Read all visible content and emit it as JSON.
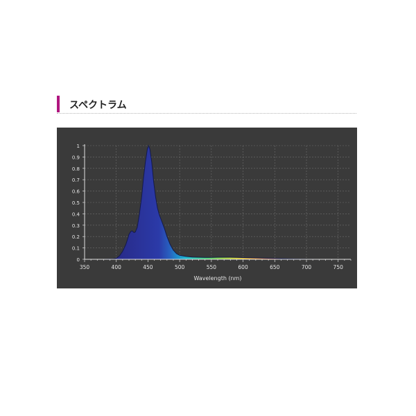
{
  "section": {
    "title": "スペクトラム",
    "accent_color": "#b0167f"
  },
  "chart_data": {
    "type": "area",
    "title": "",
    "xlabel": "Wavelength (nm)",
    "ylabel": "",
    "xlim": [
      350,
      770
    ],
    "ylim": [
      0,
      1
    ],
    "grid": true,
    "background": "#3a3a3a",
    "x_ticks": [
      "350",
      "400",
      "450",
      "500",
      "550",
      "600",
      "650",
      "700",
      "750"
    ],
    "y_ticks": [
      "0",
      "0.1",
      "0.2",
      "0.3",
      "0.4",
      "0.5",
      "0.6",
      "0.7",
      "0.8",
      "0.9",
      "1"
    ],
    "series": [
      {
        "x": [
          350,
          380,
          395,
          400,
          405,
          410,
          415,
          418,
          420,
          423,
          425,
          428,
          430,
          433,
          436,
          440,
          443,
          446,
          449,
          451,
          453,
          456,
          459,
          462,
          465,
          468,
          472,
          476,
          480,
          485,
          490,
          495,
          500,
          510,
          520,
          530,
          540,
          550,
          560,
          570,
          580,
          590,
          600,
          620,
          640,
          660,
          680,
          700,
          720,
          750
        ],
        "y": [
          0,
          0,
          0.003,
          0.01,
          0.03,
          0.07,
          0.13,
          0.18,
          0.22,
          0.245,
          0.25,
          0.235,
          0.24,
          0.28,
          0.38,
          0.55,
          0.72,
          0.86,
          0.97,
          1.0,
          0.97,
          0.85,
          0.68,
          0.55,
          0.45,
          0.39,
          0.33,
          0.27,
          0.2,
          0.13,
          0.08,
          0.05,
          0.035,
          0.025,
          0.02,
          0.018,
          0.017,
          0.017,
          0.018,
          0.018,
          0.018,
          0.017,
          0.015,
          0.012,
          0.009,
          0.006,
          0.003,
          0.001,
          0,
          0
        ]
      }
    ]
  }
}
